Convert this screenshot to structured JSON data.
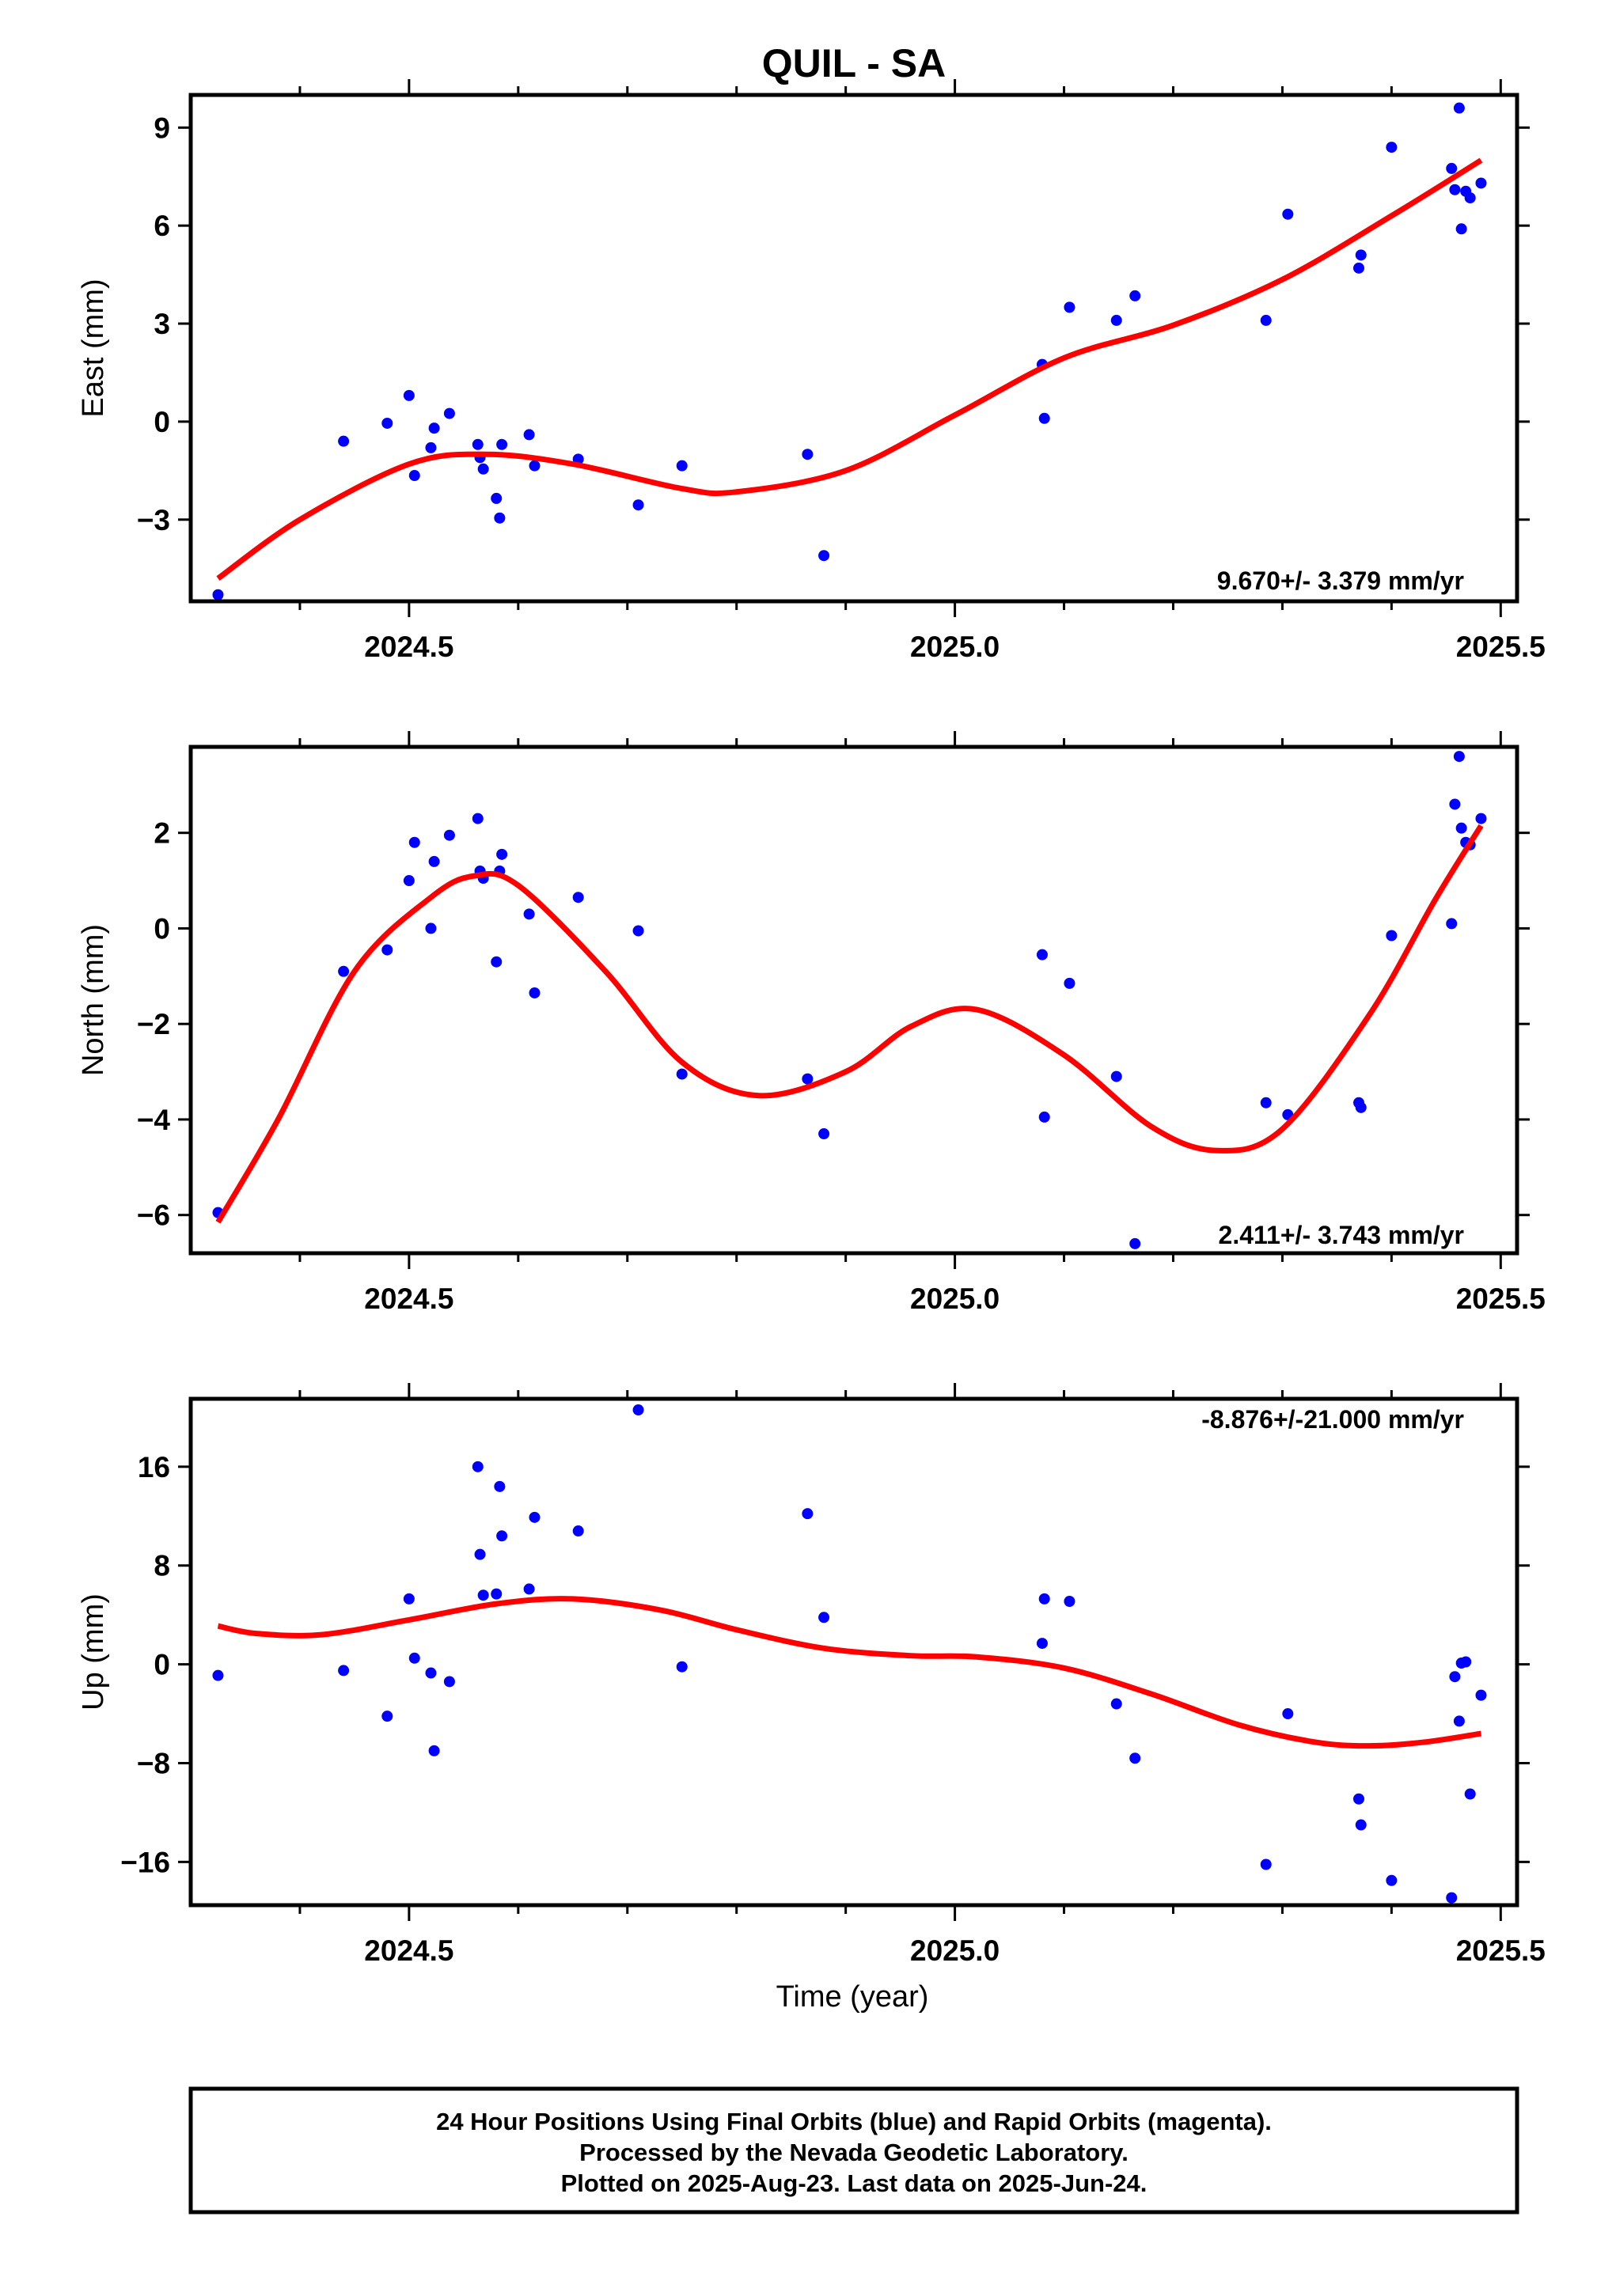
{
  "title": "QUIL - SA",
  "xlabel": "Time (year)",
  "footer": {
    "lines": [
      "24 Hour Positions Using Final Orbits (blue) and Rapid Orbits (magenta).",
      "Processed by the Nevada Geodetic Laboratory.",
      "Plotted on 2025-Aug-23. Last data on 2025-Jun-24."
    ]
  },
  "colors": {
    "points": "#0000ff",
    "fit": "#ff0000",
    "frame": "#000000"
  },
  "chart_data": [
    {
      "type": "scatter",
      "ylabel": "East (mm)",
      "rate_label": "9.670+/- 3.379 mm/yr",
      "xlim": [
        2024.3,
        2025.515
      ],
      "ylim": [
        -5.5,
        10
      ],
      "xticks": [
        2024.5,
        2025.0,
        2025.5
      ],
      "xtick_labels": [
        "2024.5",
        "2025.0",
        "2025.5"
      ],
      "xticks_minor": [
        2024.4,
        2024.6,
        2024.7,
        2024.8,
        2024.9,
        2025.1,
        2025.2,
        2025.3,
        2025.4
      ],
      "yticks": [
        -3,
        0,
        3,
        6,
        9
      ],
      "ytick_labels": [
        "−3",
        "0",
        "3",
        "6",
        "9"
      ],
      "points": {
        "x": [
          2024.325,
          2024.44,
          2024.48,
          2024.5,
          2024.505,
          2024.52,
          2024.523,
          2024.537,
          2024.563,
          2024.565,
          2024.568,
          2024.58,
          2024.583,
          2024.585,
          2024.61,
          2024.615,
          2024.655,
          2024.71,
          2024.75,
          2024.865,
          2024.88,
          2025.08,
          2025.082,
          2025.105,
          2025.148,
          2025.165,
          2025.285,
          2025.305,
          2025.37,
          2025.372,
          2025.4,
          2025.455,
          2025.458,
          2025.462,
          2025.464,
          2025.468,
          2025.472,
          2025.482
        ],
        "y": [
          -5.3,
          -0.6,
          -0.05,
          0.8,
          -1.65,
          -0.8,
          -0.2,
          0.25,
          -0.7,
          -1.1,
          -1.45,
          -2.35,
          -2.95,
          -0.7,
          -0.4,
          -1.35,
          -1.15,
          -2.55,
          -1.35,
          -1.0,
          -4.1,
          1.75,
          0.1,
          3.5,
          3.1,
          3.85,
          3.1,
          6.35,
          4.7,
          5.1,
          8.4,
          7.75,
          7.1,
          9.6,
          5.9,
          7.05,
          6.85,
          7.3
        ]
      },
      "fit": {
        "x": [
          2024.325,
          2024.4,
          2024.5,
          2024.57,
          2024.65,
          2024.75,
          2024.8,
          2024.9,
          2025.0,
          2025.1,
          2025.2,
          2025.3,
          2025.4,
          2025.482
        ],
        "y": [
          -4.8,
          -3.0,
          -1.3,
          -1.0,
          -1.3,
          -2.05,
          -2.15,
          -1.5,
          0.2,
          1.95,
          2.95,
          4.35,
          6.3,
          8.0
        ]
      }
    },
    {
      "type": "scatter",
      "ylabel": "North (mm)",
      "rate_label": "2.411+/- 3.743 mm/yr",
      "xlim": [
        2024.3,
        2025.515
      ],
      "ylim": [
        -6.8,
        3.8
      ],
      "xticks": [
        2024.5,
        2025.0,
        2025.5
      ],
      "xtick_labels": [
        "2024.5",
        "2025.0",
        "2025.5"
      ],
      "xticks_minor": [
        2024.4,
        2024.6,
        2024.7,
        2024.8,
        2024.9,
        2025.1,
        2025.2,
        2025.3,
        2025.4
      ],
      "yticks": [
        -6,
        -4,
        -2,
        0,
        2
      ],
      "ytick_labels": [
        "−6",
        "−4",
        "−2",
        "0",
        "2"
      ],
      "points": {
        "x": [
          2024.325,
          2024.44,
          2024.48,
          2024.5,
          2024.505,
          2024.52,
          2024.523,
          2024.537,
          2024.563,
          2024.565,
          2024.568,
          2024.58,
          2024.583,
          2024.585,
          2024.61,
          2024.615,
          2024.655,
          2024.71,
          2024.75,
          2024.865,
          2024.88,
          2025.08,
          2025.082,
          2025.105,
          2025.148,
          2025.165,
          2025.285,
          2025.305,
          2025.37,
          2025.372,
          2025.4,
          2025.455,
          2025.458,
          2025.462,
          2025.464,
          2025.468,
          2025.472,
          2025.482
        ],
        "y": [
          -5.95,
          -0.9,
          -0.45,
          1.0,
          1.8,
          0.0,
          1.4,
          1.95,
          2.3,
          1.2,
          1.05,
          -0.7,
          1.2,
          1.55,
          0.3,
          -1.35,
          0.65,
          -0.05,
          -3.05,
          -3.15,
          -4.3,
          -0.55,
          -3.95,
          -1.15,
          -3.1,
          -6.6,
          -3.65,
          -3.9,
          -3.65,
          -3.75,
          -0.15,
          0.1,
          2.6,
          3.6,
          2.1,
          1.8,
          1.75,
          2.3
        ]
      },
      "fit": {
        "x": [
          2024.325,
          2024.38,
          2024.45,
          2024.52,
          2024.56,
          2024.6,
          2024.68,
          2024.75,
          2024.82,
          2024.9,
          2024.96,
          2025.02,
          2025.1,
          2025.18,
          2025.24,
          2025.3,
          2025.38,
          2025.44,
          2025.482
        ],
        "y": [
          -6.15,
          -4.0,
          -0.9,
          0.65,
          1.1,
          0.9,
          -0.9,
          -2.8,
          -3.5,
          -3.0,
          -2.05,
          -1.7,
          -2.65,
          -4.15,
          -4.65,
          -4.2,
          -1.8,
          0.6,
          2.15
        ]
      }
    },
    {
      "type": "scatter",
      "ylabel": "Up (mm)",
      "rate_label": "-8.876+/-21.000 mm/yr",
      "xlim": [
        2024.3,
        2025.515
      ],
      "ylim": [
        -19.5,
        21.5
      ],
      "xticks": [
        2024.5,
        2025.0,
        2025.5
      ],
      "xtick_labels": [
        "2024.5",
        "2025.0",
        "2025.5"
      ],
      "xticks_minor": [
        2024.4,
        2024.6,
        2024.7,
        2024.8,
        2024.9,
        2025.1,
        2025.2,
        2025.3,
        2025.4
      ],
      "yticks": [
        -16,
        -8,
        0,
        8,
        16
      ],
      "ytick_labels": [
        "−16",
        "−8",
        "0",
        "8",
        "16"
      ],
      "points": {
        "x": [
          2024.325,
          2024.44,
          2024.48,
          2024.5,
          2024.505,
          2024.52,
          2024.523,
          2024.537,
          2024.563,
          2024.565,
          2024.568,
          2024.58,
          2024.583,
          2024.585,
          2024.61,
          2024.615,
          2024.655,
          2024.71,
          2024.75,
          2024.865,
          2024.88,
          2025.08,
          2025.082,
          2025.105,
          2025.148,
          2025.165,
          2025.285,
          2025.305,
          2025.37,
          2025.372,
          2025.4,
          2025.455,
          2025.458,
          2025.462,
          2025.464,
          2025.468,
          2025.472,
          2025.482
        ],
        "y": [
          -0.9,
          -0.5,
          -4.2,
          5.3,
          0.5,
          -0.7,
          -7.0,
          -1.4,
          16.0,
          8.9,
          5.6,
          5.7,
          14.4,
          10.4,
          6.1,
          11.9,
          10.8,
          20.6,
          -0.2,
          12.2,
          3.8,
          1.7,
          5.3,
          5.1,
          -3.2,
          -7.6,
          -16.2,
          -4.0,
          -10.9,
          -13.0,
          -17.5,
          -18.9,
          -1.0,
          -4.6,
          0.1,
          0.2,
          -10.5,
          -2.5
        ]
      },
      "fit": {
        "x": [
          2024.325,
          2024.36,
          2024.42,
          2024.5,
          2024.58,
          2024.65,
          2024.73,
          2024.8,
          2024.88,
          2024.96,
          2025.02,
          2025.1,
          2025.18,
          2025.26,
          2025.33,
          2025.38,
          2025.43,
          2025.482
        ],
        "y": [
          3.1,
          2.5,
          2.4,
          3.6,
          4.9,
          5.3,
          4.4,
          2.8,
          1.3,
          0.7,
          0.6,
          -0.3,
          -2.4,
          -4.9,
          -6.3,
          -6.6,
          -6.3,
          -5.6
        ]
      }
    }
  ]
}
